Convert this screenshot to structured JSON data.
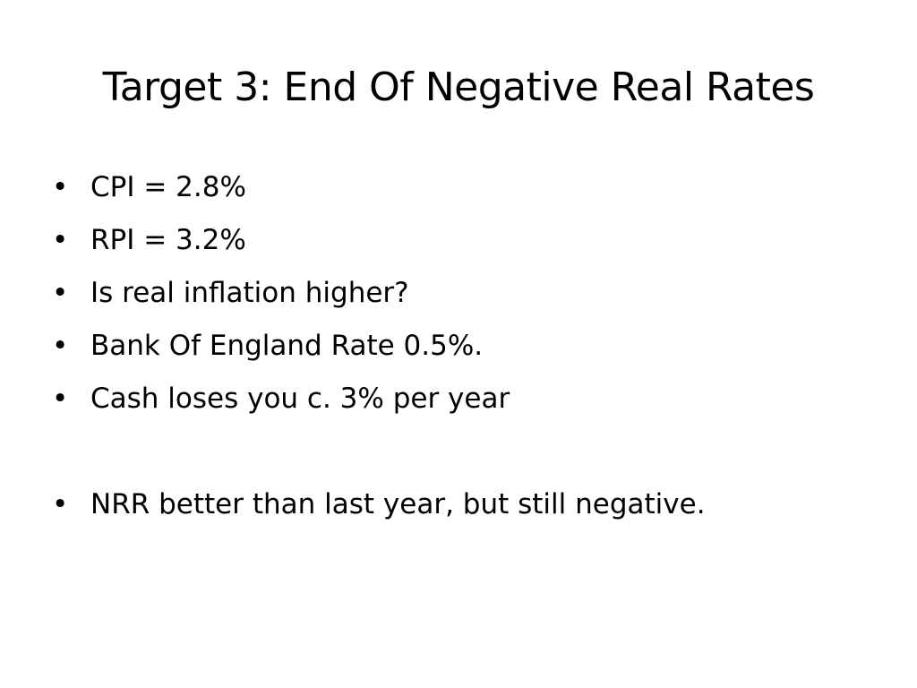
{
  "slide": {
    "title": "Target 3: End Of Negative Real Rates",
    "bullet_symbol": "•",
    "bullets": [
      "CPI = 2.8%",
      "RPI = 3.2%",
      "Is real inflation higher?",
      "Bank Of England Rate 0.5%.",
      "Cash loses you c. 3% per year",
      "NRR better than last year, but still negative."
    ]
  }
}
